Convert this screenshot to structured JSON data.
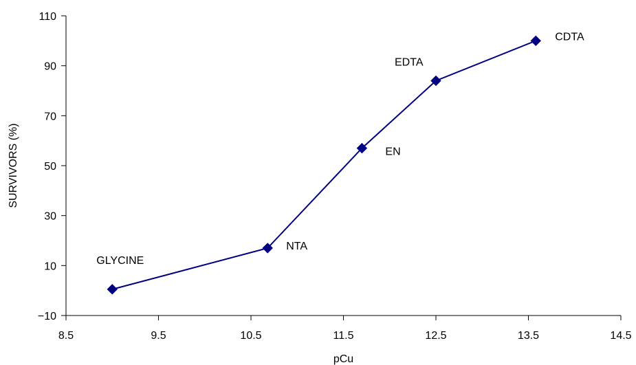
{
  "chart_data": {
    "type": "line",
    "title": "",
    "xlabel": "pCu",
    "ylabel": "SURVIVORS (%)",
    "xlim": [
      8.5,
      14.5
    ],
    "ylim": [
      -10,
      110
    ],
    "x_ticks": [
      "8.5",
      "9.5",
      "10.5",
      "11.5",
      "12.5",
      "13.5",
      "14.5"
    ],
    "y_ticks": [
      "110",
      "90",
      "70",
      "50",
      "30",
      "10",
      "−10"
    ],
    "grid": false,
    "marker": "diamond",
    "color": "#000080",
    "points": [
      {
        "label": "GLYCINE",
        "x": 9.0,
        "y": 0.5
      },
      {
        "label": "NTA",
        "x": 10.68,
        "y": 17
      },
      {
        "label": "EN",
        "x": 11.7,
        "y": 57
      },
      {
        "label": "EDTA",
        "x": 12.5,
        "y": 84
      },
      {
        "label": "CDTA",
        "x": 13.58,
        "y": 100
      }
    ]
  }
}
